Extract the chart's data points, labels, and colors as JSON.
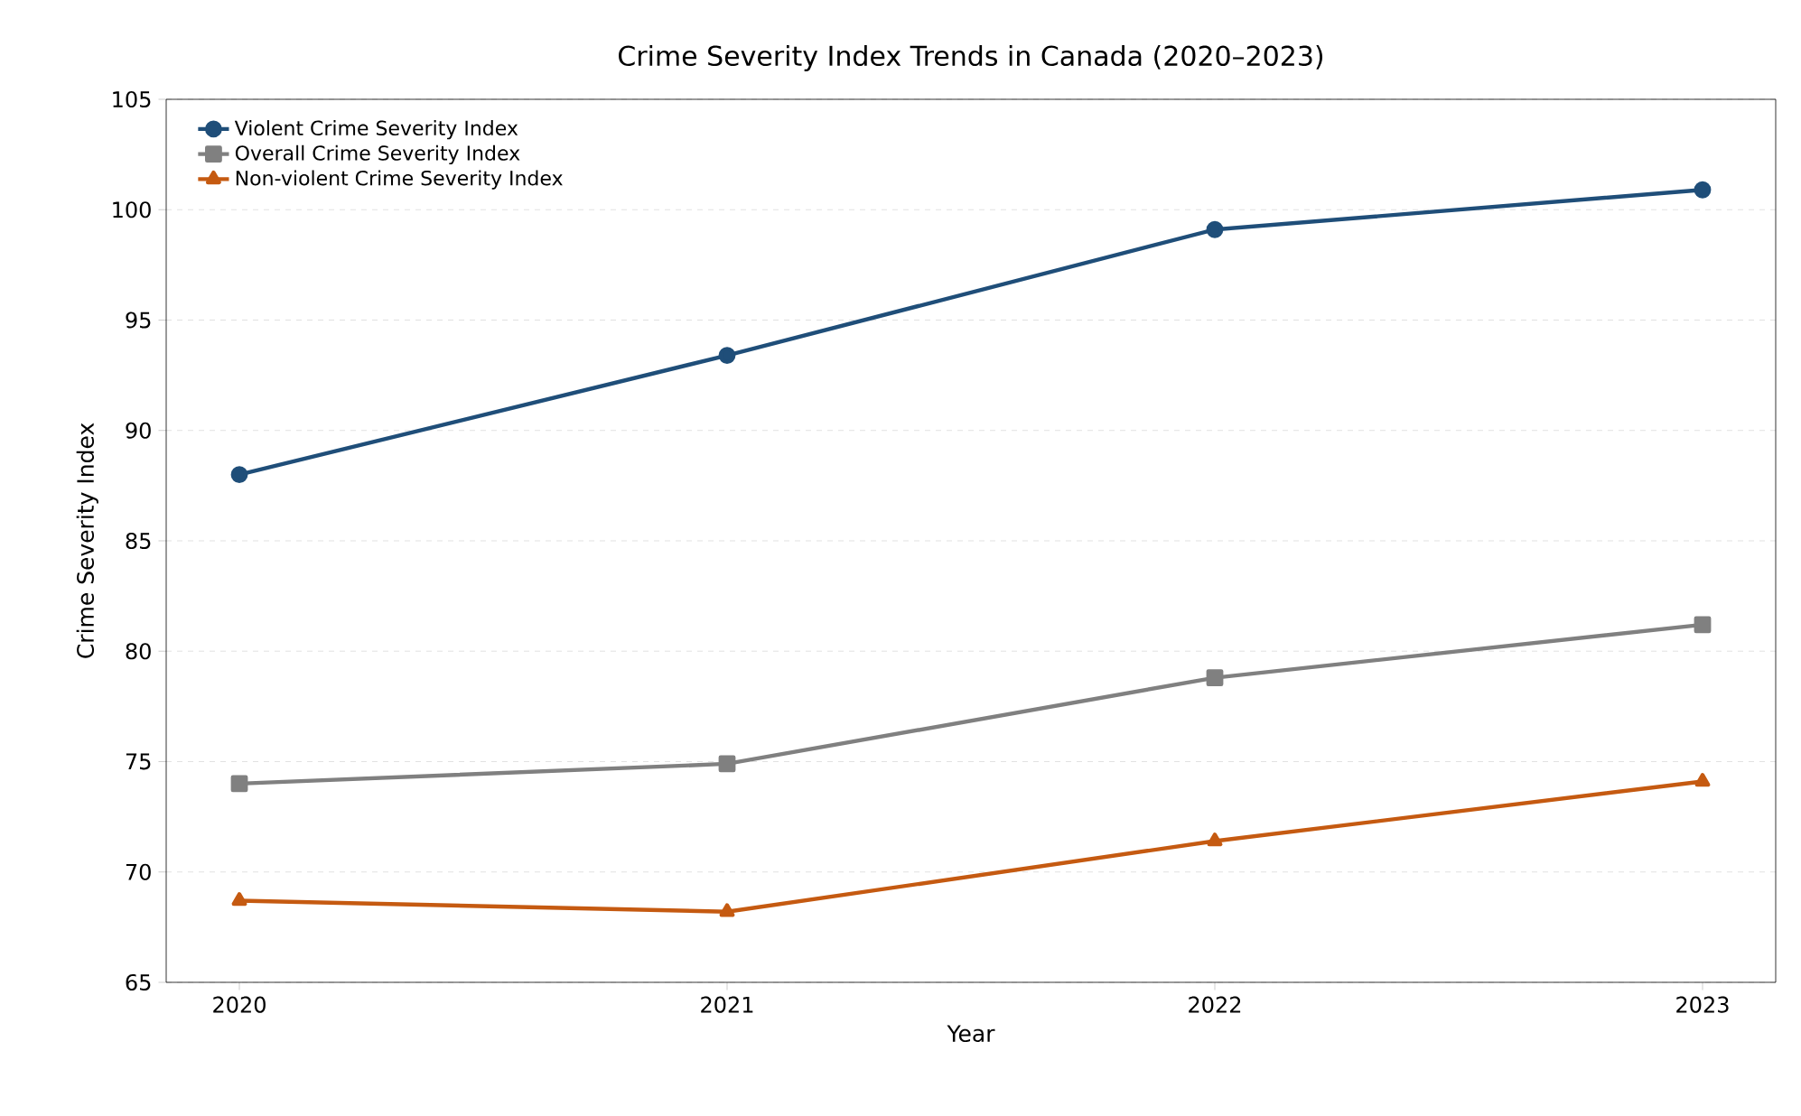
{
  "chart_data": {
    "type": "line",
    "title": "Crime Severity Index Trends in Canada (2020–2023)",
    "xlabel": "Year",
    "ylabel": "Crime Severity Index",
    "x": [
      2020,
      2021,
      2022,
      2023
    ],
    "xlim": [
      2019.85,
      2023.15
    ],
    "xticks": [
      2020,
      2021,
      2022,
      2023
    ],
    "ylim": [
      65,
      105
    ],
    "yticks": [
      65,
      70,
      75,
      80,
      85,
      90,
      95,
      100,
      105
    ],
    "grid": "y",
    "legend": "top left",
    "line_style": "solid",
    "series": [
      {
        "name": "Violent Crime Severity Index",
        "color": "#1f4e79",
        "marker": "circle",
        "values": [
          88.0,
          93.4,
          99.1,
          100.9
        ]
      },
      {
        "name": "Overall Crime Severity Index",
        "color": "#808080",
        "marker": "square",
        "values": [
          74.0,
          74.9,
          78.8,
          81.2
        ]
      },
      {
        "name": "Non-violent Crime Severity Index",
        "color": "#c55a11",
        "marker": "triangle",
        "values": [
          68.7,
          68.2,
          71.4,
          74.1
        ]
      }
    ]
  }
}
